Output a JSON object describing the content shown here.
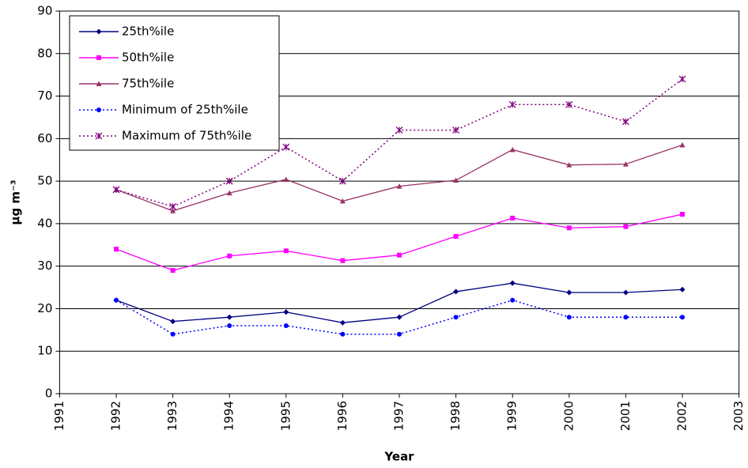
{
  "chart_data": {
    "type": "line",
    "x_label": "Year",
    "y_label": "µg m⁻³",
    "x": [
      1992,
      1993,
      1994,
      1995,
      1996,
      1997,
      1998,
      1999,
      2000,
      2001,
      2002
    ],
    "series": [
      {
        "name": "25th%ile",
        "color": "#000080",
        "marker": "diamond",
        "style": "solid",
        "values": [
          22,
          17,
          18,
          19.2,
          16.7,
          18,
          24,
          26,
          23.8,
          23.8,
          24.5
        ]
      },
      {
        "name": "50th%ile",
        "color": "#ff00ff",
        "marker": "square",
        "style": "solid",
        "values": [
          34,
          29,
          32.4,
          33.6,
          31.3,
          32.6,
          37,
          41.3,
          39,
          39.3,
          42.2
        ]
      },
      {
        "name": "75th%ile",
        "color": "#993366",
        "marker": "triangle",
        "style": "solid",
        "values": [
          48,
          43,
          47.2,
          50.4,
          45.3,
          48.8,
          50.2,
          57.4,
          53.8,
          54,
          58.5
        ]
      },
      {
        "name": "Minimum of 25th%ile",
        "color": "#0000ff",
        "marker": "circle",
        "style": "dotted",
        "values": [
          22,
          14,
          16,
          16,
          14,
          14,
          18,
          22,
          18,
          18,
          18
        ]
      },
      {
        "name": "Maximum of 75th%ile",
        "color": "#800080",
        "marker": "asterisk",
        "style": "dotted",
        "values": [
          48,
          44,
          50,
          58,
          50,
          62,
          62,
          68,
          68,
          64,
          74
        ]
      }
    ],
    "xlim": [
      1991,
      2003
    ],
    "xticks": [
      1991,
      1992,
      1993,
      1994,
      1995,
      1996,
      1997,
      1998,
      1999,
      2000,
      2001,
      2002,
      2003
    ],
    "ylim": [
      0,
      90
    ],
    "yticks": [
      0,
      10,
      20,
      30,
      40,
      50,
      60,
      70,
      80,
      90
    ],
    "grid": true,
    "legend": "top-left"
  }
}
